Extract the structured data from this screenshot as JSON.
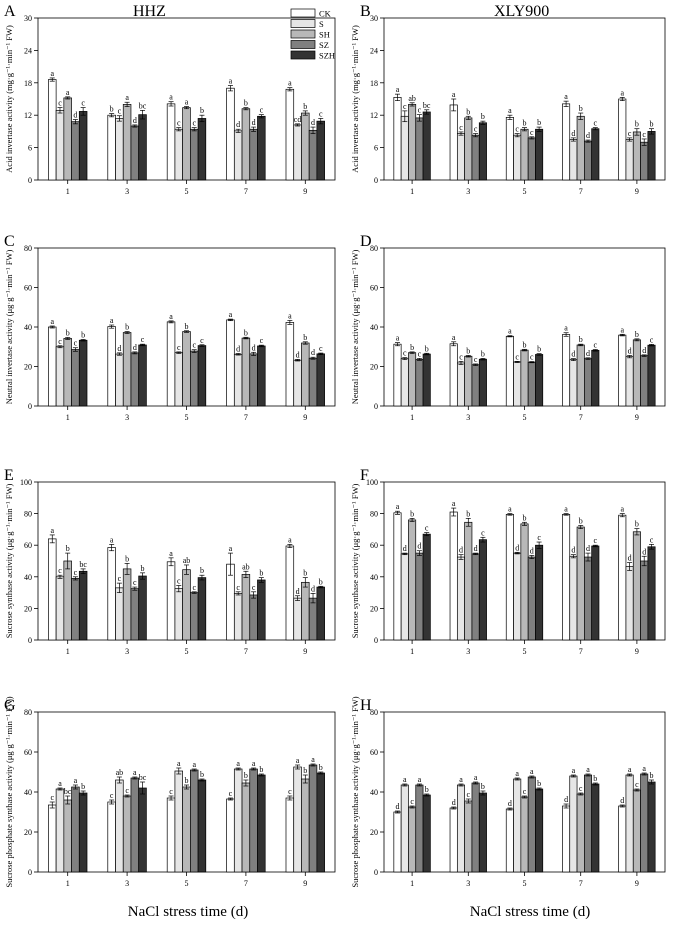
{
  "figure": {
    "xlabel": "NaCl stress time (d)",
    "legend": {
      "placement": "top-right of panel A",
      "entries": [
        {
          "name": "CK",
          "color": "#ffffff"
        },
        {
          "name": "S",
          "color": "#e6e6e6"
        },
        {
          "name": "SH",
          "color": "#b8b8b8"
        },
        {
          "name": "SZ",
          "color": "#808080"
        },
        {
          "name": "SZH",
          "color": "#333333"
        }
      ]
    }
  },
  "chart_data": [
    {
      "panel": "A",
      "title": "HHZ",
      "type": "bar",
      "ylabel": "Acid invertase activity (mg·g⁻¹·min⁻¹ FW)",
      "ylim": [
        0,
        30
      ],
      "yticks": [
        0,
        6,
        12,
        18,
        24,
        30
      ],
      "categories": [
        "1",
        "3",
        "5",
        "7",
        "9"
      ],
      "series": [
        {
          "name": "CK",
          "values": [
            18.6,
            12.0,
            14.1,
            17.0,
            16.8
          ],
          "errors": [
            0.3,
            0.3,
            0.4,
            0.5,
            0.3
          ],
          "labels": [
            "a",
            "b",
            "a",
            "a",
            "a"
          ]
        },
        {
          "name": "S",
          "values": [
            12.9,
            11.4,
            9.4,
            9.1,
            10.2
          ],
          "errors": [
            0.5,
            0.5,
            0.3,
            0.3,
            0.2
          ],
          "labels": [
            "c",
            "c",
            "c",
            "d",
            "cd"
          ]
        },
        {
          "name": "SH",
          "values": [
            15.2,
            14.0,
            13.4,
            13.2,
            12.4
          ],
          "errors": [
            0.2,
            0.4,
            0.2,
            0.2,
            0.4
          ],
          "labels": [
            "a",
            "a",
            "a",
            "b",
            "b"
          ]
        },
        {
          "name": "SZ",
          "values": [
            10.8,
            10.0,
            9.4,
            9.4,
            9.2
          ],
          "errors": [
            0.4,
            0.2,
            0.3,
            0.4,
            0.6
          ],
          "labels": [
            "d",
            "d",
            "c",
            "d",
            "d"
          ]
        },
        {
          "name": "SZH",
          "values": [
            12.7,
            12.1,
            11.4,
            11.8,
            10.9
          ],
          "errors": [
            0.7,
            0.8,
            0.6,
            0.3,
            0.5
          ],
          "labels": [
            "c",
            "bc",
            "b",
            "c",
            "c"
          ]
        }
      ]
    },
    {
      "panel": "B",
      "title": "XLY900",
      "type": "bar",
      "ylabel": "Acid invertase activity (mg·g⁻¹·min⁻¹ FW)",
      "ylim": [
        0,
        30
      ],
      "yticks": [
        0,
        6,
        12,
        18,
        24,
        30
      ],
      "categories": [
        "1",
        "3",
        "5",
        "7",
        "9"
      ],
      "series": [
        {
          "name": "CK",
          "values": [
            15.3,
            13.9,
            11.6,
            14.1,
            15.0
          ],
          "errors": [
            0.6,
            1.1,
            0.4,
            0.5,
            0.3
          ],
          "labels": [
            "a",
            "a",
            "a",
            "a",
            "a"
          ]
        },
        {
          "name": "S",
          "values": [
            11.8,
            8.6,
            8.3,
            7.5,
            7.5
          ],
          "errors": [
            1.0,
            0.3,
            0.3,
            0.3,
            0.3
          ],
          "labels": [
            "c",
            "c",
            "c",
            "d",
            "c"
          ]
        },
        {
          "name": "SH",
          "values": [
            14.0,
            11.5,
            9.4,
            11.8,
            8.9
          ],
          "errors": [
            0.3,
            0.3,
            0.3,
            0.6,
            0.6
          ],
          "labels": [
            "ab",
            "b",
            "b",
            "b",
            "b"
          ]
        },
        {
          "name": "SZ",
          "values": [
            11.5,
            8.3,
            7.8,
            7.2,
            7.0
          ],
          "errors": [
            0.6,
            0.3,
            0.2,
            0.2,
            0.6
          ],
          "labels": [
            "c",
            "c",
            "c",
            "d",
            "c"
          ]
        },
        {
          "name": "SZH",
          "values": [
            12.6,
            10.6,
            9.4,
            9.5,
            9.0
          ],
          "errors": [
            0.4,
            0.3,
            0.4,
            0.2,
            0.5
          ],
          "labels": [
            "bc",
            "b",
            "b",
            "c",
            "b"
          ]
        }
      ]
    },
    {
      "panel": "C",
      "title": "",
      "type": "bar",
      "ylabel": "Neutral invertase activity (μg·g⁻¹·min⁻¹ FW)",
      "ylim": [
        0,
        80
      ],
      "yticks": [
        0,
        20,
        40,
        60,
        80
      ],
      "categories": [
        "1",
        "3",
        "5",
        "7",
        "9"
      ],
      "series": [
        {
          "name": "CK",
          "values": [
            40.0,
            40.2,
            42.6,
            43.6,
            42.3
          ],
          "errors": [
            0.5,
            0.8,
            0.5,
            0.4,
            1.0
          ],
          "labels": [
            "a",
            "a",
            "a",
            "a",
            "a"
          ]
        },
        {
          "name": "S",
          "values": [
            30.0,
            26.3,
            27.0,
            26.2,
            23.2
          ],
          "errors": [
            0.5,
            0.6,
            0.4,
            0.4,
            0.4
          ],
          "labels": [
            "c",
            "d",
            "c",
            "d",
            "d"
          ]
        },
        {
          "name": "SH",
          "values": [
            34.2,
            37.2,
            37.7,
            34.4,
            31.9
          ],
          "errors": [
            0.5,
            0.5,
            0.4,
            0.4,
            0.6
          ],
          "labels": [
            "b",
            "b",
            "b",
            "b",
            "b"
          ]
        },
        {
          "name": "SZ",
          "values": [
            28.6,
            26.9,
            27.8,
            26.4,
            24.2
          ],
          "errors": [
            0.9,
            0.5,
            0.7,
            0.8,
            0.5
          ],
          "labels": [
            "c",
            "d",
            "c",
            "d",
            "d"
          ]
        },
        {
          "name": "SZH",
          "values": [
            33.3,
            30.9,
            30.6,
            30.4,
            26.4
          ],
          "errors": [
            0.4,
            0.4,
            0.4,
            0.4,
            0.4
          ],
          "labels": [
            "b",
            "c",
            "c",
            "c",
            "c"
          ]
        }
      ]
    },
    {
      "panel": "D",
      "title": "",
      "type": "bar",
      "ylabel": "Neutral invertase activity (μg·g⁻¹·min⁻¹ FW)",
      "ylim": [
        0,
        80
      ],
      "yticks": [
        0,
        20,
        40,
        60,
        80
      ],
      "categories": [
        "1",
        "3",
        "5",
        "7",
        "9"
      ],
      "series": [
        {
          "name": "CK",
          "values": [
            31.3,
            31.5,
            35.3,
            36.2,
            35.9
          ],
          "errors": [
            0.8,
            1.0,
            0.3,
            0.9,
            0.4
          ],
          "labels": [
            "a",
            "a",
            "a",
            "a",
            "a"
          ]
        },
        {
          "name": "S",
          "values": [
            24.0,
            21.8,
            22.3,
            23.5,
            25.0
          ],
          "errors": [
            0.5,
            0.8,
            0.3,
            0.5,
            0.6
          ],
          "labels": [
            "c",
            "c",
            "c",
            "d",
            "d"
          ]
        },
        {
          "name": "SH",
          "values": [
            27.0,
            25.2,
            28.3,
            30.9,
            33.5
          ],
          "errors": [
            0.4,
            0.4,
            0.4,
            0.4,
            0.5
          ],
          "labels": [
            "b",
            "b",
            "b",
            "b",
            "b"
          ]
        },
        {
          "name": "SZ",
          "values": [
            23.6,
            20.9,
            22.2,
            24.0,
            25.5
          ],
          "errors": [
            0.5,
            0.4,
            0.3,
            0.4,
            0.4
          ],
          "labels": [
            "c",
            "c",
            "c",
            "d",
            "d"
          ]
        },
        {
          "name": "SZH",
          "values": [
            26.3,
            23.7,
            26.1,
            28.2,
            30.8
          ],
          "errors": [
            0.4,
            0.4,
            0.4,
            0.4,
            0.4
          ],
          "labels": [
            "b",
            "b",
            "b",
            "c",
            "c"
          ]
        }
      ]
    },
    {
      "panel": "E",
      "title": "",
      "type": "bar",
      "ylabel": "Sucrose synthase activity (μg·g⁻¹·min⁻¹ FW)",
      "ylim": [
        0,
        100
      ],
      "yticks": [
        0,
        20,
        40,
        60,
        80,
        100
      ],
      "categories": [
        "1",
        "3",
        "5",
        "7",
        "9"
      ],
      "series": [
        {
          "name": "CK",
          "values": [
            64.0,
            58.5,
            49.5,
            48.0,
            59.5
          ],
          "errors": [
            2.5,
            2.0,
            2.5,
            7.0,
            1.0
          ],
          "labels": [
            "a",
            "a",
            "a",
            "a",
            "a"
          ]
        },
        {
          "name": "S",
          "values": [
            40.0,
            33.0,
            32.5,
            29.5,
            26.5
          ],
          "errors": [
            1.0,
            3.0,
            2.0,
            1.0,
            1.5
          ],
          "labels": [
            "c",
            "c",
            "c",
            "c",
            "d"
          ]
        },
        {
          "name": "SH",
          "values": [
            50.0,
            45.0,
            44.5,
            41.5,
            36.5
          ],
          "errors": [
            5.0,
            3.5,
            3.0,
            2.0,
            3.0
          ],
          "labels": [
            "b",
            "b",
            "ab",
            "ab",
            "b"
          ]
        },
        {
          "name": "SZ",
          "values": [
            39.0,
            32.5,
            30.0,
            28.5,
            26.5
          ],
          "errors": [
            1.0,
            1.0,
            0.5,
            2.0,
            3.0
          ],
          "labels": [
            "c",
            "c",
            "c",
            "c",
            "d"
          ]
        },
        {
          "name": "SZH",
          "values": [
            43.5,
            40.5,
            39.5,
            38.0,
            33.5
          ],
          "errors": [
            1.5,
            2.0,
            1.5,
            1.5,
            0.5
          ],
          "labels": [
            "bc",
            "b",
            "b",
            "b",
            "b"
          ]
        }
      ]
    },
    {
      "panel": "F",
      "title": "",
      "type": "bar",
      "ylabel": "Sucrose synthase activity (μg·g⁻¹·min⁻¹ FW)",
      "ylim": [
        0,
        100
      ],
      "yticks": [
        0,
        20,
        40,
        60,
        80,
        100
      ],
      "categories": [
        "1",
        "3",
        "5",
        "7",
        "9"
      ],
      "series": [
        {
          "name": "CK",
          "values": [
            80.5,
            81.0,
            79.5,
            79.5,
            79.0
          ],
          "errors": [
            1.0,
            2.5,
            0.5,
            0.5,
            1.0
          ],
          "labels": [
            "a",
            "a",
            "a",
            "a",
            "a"
          ]
        },
        {
          "name": "S",
          "values": [
            54.5,
            52.5,
            55.0,
            53.0,
            46.5
          ],
          "errors": [
            0.5,
            1.5,
            0.5,
            1.0,
            2.5
          ],
          "labels": [
            "d",
            "d",
            "d",
            "d",
            "d"
          ]
        },
        {
          "name": "SH",
          "values": [
            76.0,
            74.5,
            73.5,
            71.5,
            68.5
          ],
          "errors": [
            1.0,
            2.5,
            1.0,
            1.0,
            2.0
          ],
          "labels": [
            "b",
            "b",
            "b",
            "b",
            "b"
          ]
        },
        {
          "name": "SZ",
          "values": [
            55.0,
            54.5,
            52.5,
            52.5,
            50.0
          ],
          "errors": [
            1.5,
            0.5,
            1.0,
            2.5,
            3.0
          ],
          "labels": [
            "d",
            "d",
            "d",
            "d",
            "d"
          ]
        },
        {
          "name": "SZH",
          "values": [
            67.0,
            63.5,
            60.0,
            59.5,
            59.0
          ],
          "errors": [
            1.0,
            1.5,
            2.0,
            0.5,
            1.5
          ],
          "labels": [
            "c",
            "c",
            "c",
            "c",
            "c"
          ]
        }
      ]
    },
    {
      "panel": "G",
      "title": "",
      "type": "bar",
      "ylabel": "Sucrose phosphate synthase activity (μg·g⁻¹·min⁻¹ FW)",
      "ylim": [
        0,
        80
      ],
      "yticks": [
        0,
        20,
        40,
        60,
        80
      ],
      "categories": [
        "1",
        "3",
        "5",
        "7",
        "9"
      ],
      "series": [
        {
          "name": "CK",
          "values": [
            33.5,
            35.0,
            37.0,
            36.5,
            37.0
          ],
          "errors": [
            1.5,
            1.0,
            1.0,
            0.5,
            1.0
          ],
          "labels": [
            "c",
            "c",
            "c",
            "c",
            "c"
          ]
        },
        {
          "name": "S",
          "values": [
            41.5,
            46.0,
            50.5,
            51.5,
            52.5
          ],
          "errors": [
            0.5,
            1.5,
            1.5,
            0.5,
            1.0
          ],
          "labels": [
            "a",
            "ab",
            "a",
            "a",
            "a"
          ]
        },
        {
          "name": "SH",
          "values": [
            36.0,
            38.0,
            42.5,
            44.5,
            46.5
          ],
          "errors": [
            2.0,
            0.5,
            1.0,
            1.5,
            2.0
          ],
          "labels": [
            "bc",
            "c",
            "b",
            "b",
            "b"
          ]
        },
        {
          "name": "SZ",
          "values": [
            42.5,
            47.0,
            51.0,
            51.5,
            53.5
          ],
          "errors": [
            1.0,
            0.5,
            0.5,
            0.5,
            0.5
          ],
          "labels": [
            "a",
            "a",
            "a",
            "a",
            "a"
          ]
        },
        {
          "name": "SZH",
          "values": [
            39.5,
            42.0,
            46.0,
            48.5,
            49.5
          ],
          "errors": [
            1.0,
            3.0,
            0.5,
            0.5,
            0.5
          ],
          "labels": [
            "b",
            "bc",
            "b",
            "b",
            "b"
          ]
        }
      ]
    },
    {
      "panel": "H",
      "title": "",
      "type": "bar",
      "ylabel": "Sucrose phosphate synthase activity (μg·g⁻¹·min⁻¹ FW)",
      "ylim": [
        0,
        80
      ],
      "yticks": [
        0,
        20,
        40,
        60,
        80
      ],
      "categories": [
        "1",
        "3",
        "5",
        "7",
        "9"
      ],
      "series": [
        {
          "name": "CK",
          "values": [
            30.0,
            32.0,
            31.5,
            33.0,
            33.0
          ],
          "errors": [
            0.5,
            0.5,
            0.5,
            1.0,
            0.5
          ],
          "labels": [
            "d",
            "d",
            "d",
            "d",
            "d"
          ]
        },
        {
          "name": "S",
          "values": [
            43.5,
            43.5,
            46.5,
            48.0,
            48.5
          ],
          "errors": [
            0.5,
            0.5,
            0.5,
            0.5,
            0.5
          ],
          "labels": [
            "a",
            "a",
            "a",
            "a",
            "a"
          ]
        },
        {
          "name": "SH",
          "values": [
            32.5,
            35.5,
            37.5,
            39.0,
            41.0
          ],
          "errors": [
            0.5,
            1.0,
            0.5,
            0.5,
            0.5
          ],
          "labels": [
            "c",
            "c",
            "c",
            "c",
            "c"
          ]
        },
        {
          "name": "SZ",
          "values": [
            43.5,
            44.5,
            47.5,
            48.5,
            49.0
          ],
          "errors": [
            0.5,
            0.5,
            0.5,
            0.5,
            0.5
          ],
          "labels": [
            "a",
            "a",
            "a",
            "a",
            "a"
          ]
        },
        {
          "name": "SZH",
          "values": [
            38.5,
            39.5,
            41.5,
            44.0,
            45.0
          ],
          "errors": [
            0.5,
            1.0,
            0.5,
            0.5,
            1.0
          ],
          "labels": [
            "b",
            "b",
            "b",
            "b",
            "b"
          ]
        }
      ]
    }
  ]
}
